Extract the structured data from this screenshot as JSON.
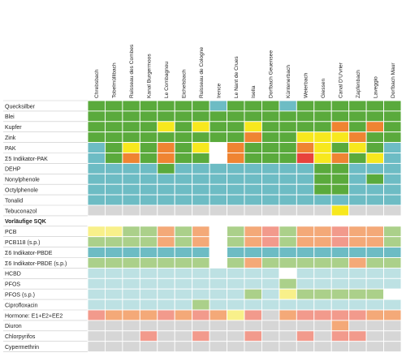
{
  "chart_data": {
    "type": "heatmap",
    "columns": [
      "Chrebsbach",
      "Tobelmüllibach",
      "Ruisseau des Combes",
      "Kanal Burgermoos",
      "Le Combagnou",
      "Eichelsbach",
      "Ruisseau de Cologne",
      "Irence",
      "Le Nant de Crues",
      "Isella",
      "Dorfbach Geuensee",
      "Küntenerbach",
      "Weierbach",
      "Giessen",
      "Canal D'U'vrier",
      "Zapfenbach",
      "Laveggio",
      "Dorfbach Maur"
    ],
    "row_labels": [
      "Quecksilber",
      "Blei",
      "Kupfer",
      "Zink",
      "PAK",
      "Σ5 Indikator-PAK",
      "DEHP",
      "Nonylphenole",
      "Octylphenole",
      "Tonalid",
      "Tebuconazol",
      "Vorläufige SQK",
      "PCB",
      "PCB118 (s.p.)",
      "Σ6 Indikator-PBDE",
      "Σ6 Indikator-PBDE (s.p.)",
      "HCBD",
      "PFOS",
      "PFOS (s.p.)",
      "Ciprofloxacin",
      "Hormone: E1+E2+EE2",
      "Diuron",
      "Chlorpyrifos",
      "Cypermethrin"
    ],
    "header_rows": [
      11
    ],
    "palette": {
      "G": "#5aaa3c",
      "Y": "#f7e81e",
      "O": "#ef8432",
      "R": "#e8433c",
      "B": "#6dbcc4",
      "L": "#abd08a",
      "Q": "#f8f08a",
      "P": "#f4a978",
      "K": "#f29a8c",
      "C": "#bde1e3",
      "S": "#d6d6d6",
      "W": "#ffffff"
    },
    "matrix": [
      "GGGGGGGBGGGBGGGGGG",
      "GGGGGGGGGGGGGGGGGG",
      "GGGGYGYGGYGGGGOGOG",
      "GGGGGGGGGOGGYYYOGG",
      "BGYGOGYWOGGGOYGYGB",
      "BGOGOGGWOGGGRYOGYB",
      "BBBBGBBBBBBBBGGBBB",
      "BBBBBBBBBBBBBGGBGB",
      "BBBBBBBBBBBBBGGBBB",
      "BBBBBBBBBBBBBBBBBB",
      "SSSSSSSSSSSSSSYSSS",
      "",
      "QQLLPLPWLPKLPPKPPL",
      "LLLLPLPWLPKLPPKPPL",
      "BBBBBBBWBBBBBBBBBB",
      "LLLLLLLWLPLLLLLPLL",
      "CCCCCCCCCCCWCCCCCC",
      "CCCCCCCCCCCLCCCCCC",
      "CCCCCCCCCLCQLLLLLW",
      "CCCCCCLCCCCCCCCCCC",
      "KPPPKPKPQKSPKKKKPP",
      "SSSSSSSSSSSSSSPSSS",
      "SSSKSSKSSKSSKSKKSS",
      "SSSSSSSSSSSSSSSSSS"
    ]
  }
}
